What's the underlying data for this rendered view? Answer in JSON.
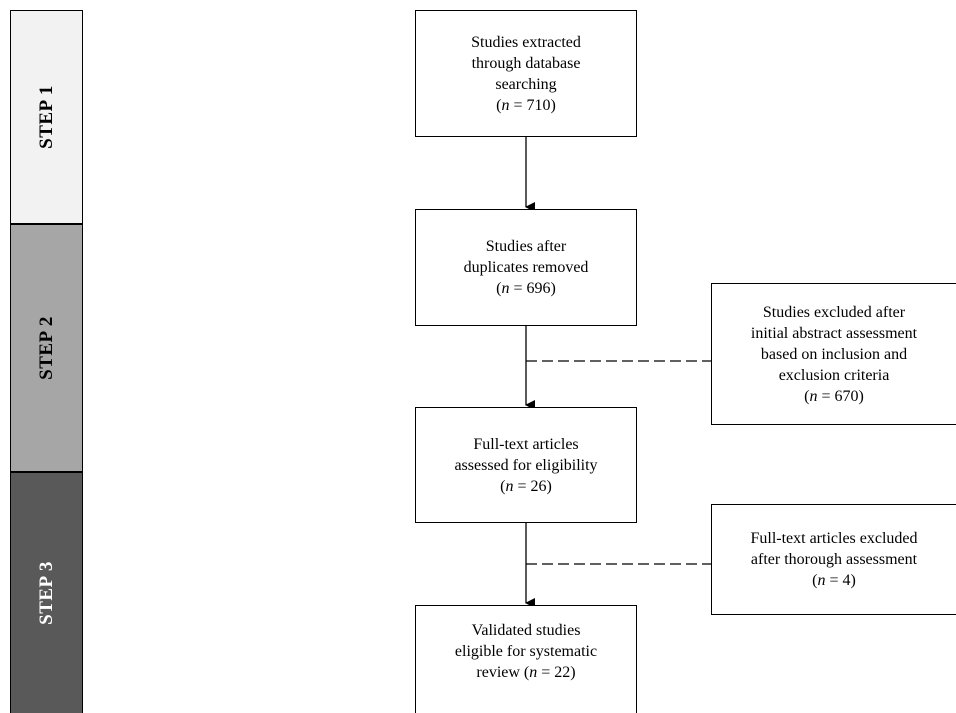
{
  "steps": [
    {
      "label": "STEP 1",
      "color": "#f2f2f2"
    },
    {
      "label": "STEP 2",
      "color": "#a6a6a6"
    },
    {
      "label": "STEP 3",
      "color": "#595959"
    }
  ],
  "boxes": {
    "extracted": {
      "lines": [
        "Studies extracted",
        "through database",
        "searching"
      ],
      "n_prefix": "n",
      "n_value": " = 710)"
    },
    "duplicates": {
      "lines": [
        "Studies after",
        "duplicates removed"
      ],
      "n_prefix": "n",
      "n_value": " = 696)"
    },
    "fulltext": {
      "lines": [
        "Full-text articles",
        "assessed for eligibility"
      ],
      "n_prefix": "n",
      "n_value": " = 26)"
    },
    "validated": {
      "lines": [
        "Validated studies",
        "eligible for systematic"
      ],
      "last_line_text": "review (",
      "n_prefix": "n",
      "n_value": " = 22)"
    },
    "excluded_abstract": {
      "lines": [
        "Studies excluded after",
        "initial abstract assessment",
        "based on inclusion and",
        "exclusion criteria"
      ],
      "n_prefix": "n",
      "n_value": " = 670)"
    },
    "excluded_fulltext": {
      "lines": [
        "Full-text articles excluded",
        "after thorough assessment"
      ],
      "n_prefix": "n",
      "n_value": " = 4)"
    }
  },
  "open_paren": "("
}
